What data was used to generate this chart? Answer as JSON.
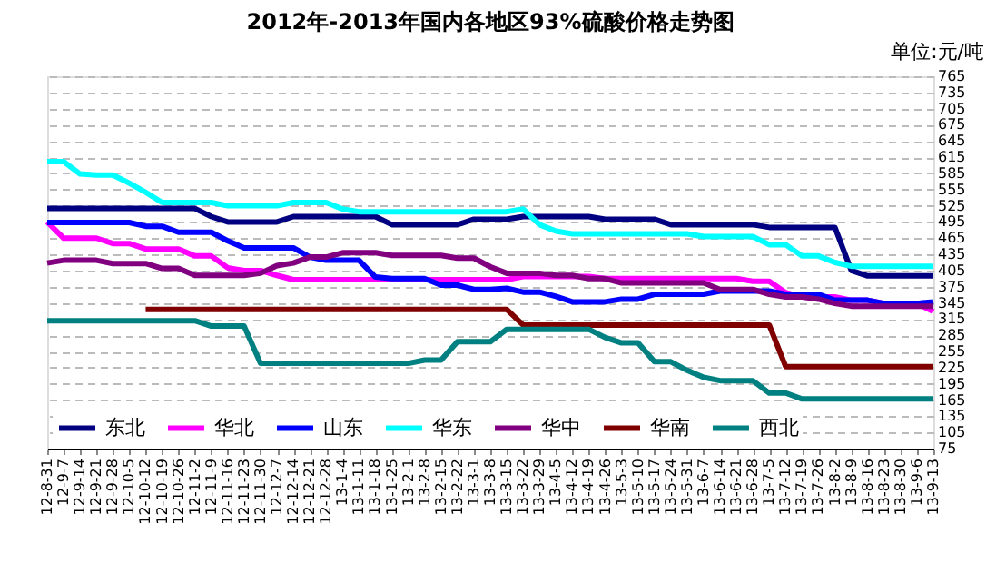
{
  "chart_data": {
    "type": "line",
    "title": "2012年-2013年国内各地区93%硫酸价格走势图",
    "annotations": [
      "单位:元/吨"
    ],
    "categories": [
      "12-8-31",
      "12-9-7",
      "12-9-14",
      "12-9-21",
      "12-9-28",
      "12-10-5",
      "12-10-12",
      "12-10-19",
      "12-10-26",
      "12-11-2",
      "12-11-9",
      "12-11-16",
      "12-11-23",
      "12-11-30",
      "12-12-7",
      "12-12-14",
      "12-12-21",
      "12-12-28",
      "13-1-4",
      "13-1-11",
      "13-1-18",
      "13-1-25",
      "13-2-1",
      "13-2-8",
      "13-2-15",
      "13-2-22",
      "13-3-1",
      "13-3-8",
      "13-3-15",
      "13-3-22",
      "13-3-29",
      "13-4-5",
      "13-4-12",
      "13-4-19",
      "13-4-26",
      "13-5-3",
      "13-5-10",
      "13-5-17",
      "13-5-24",
      "13-5-31",
      "13-6-7",
      "13-6-14",
      "13-6-21",
      "13-6-28",
      "13-7-5",
      "13-7-12",
      "13-7-19",
      "13-7-26",
      "13-8-2",
      "13-8-9",
      "13-8-16",
      "13-8-23",
      "13-8-30",
      "13-9-6",
      "13-9-13"
    ],
    "series": [
      {
        "name": "东北",
        "color": "#000080",
        "values": [
          520,
          520,
          520,
          520,
          520,
          520,
          520,
          520,
          520,
          520,
          505,
          495,
          495,
          495,
          495,
          505,
          505,
          505,
          505,
          505,
          505,
          490,
          490,
          490,
          490,
          490,
          500,
          500,
          500,
          505,
          505,
          505,
          505,
          505,
          500,
          500,
          500,
          500,
          490,
          490,
          490,
          490,
          490,
          490,
          485,
          485,
          485,
          485,
          485,
          405,
          395,
          395,
          395,
          395,
          395
        ]
      },
      {
        "name": "华北",
        "color": "#ff00ff",
        "values": [
          495,
          465,
          465,
          465,
          455,
          455,
          445,
          445,
          445,
          432,
          432,
          410,
          405,
          405,
          396,
          388,
          388,
          388,
          388,
          388,
          388,
          388,
          388,
          388,
          388,
          388,
          388,
          388,
          388,
          394,
          394,
          394,
          394,
          394,
          390,
          390,
          390,
          390,
          390,
          390,
          390,
          390,
          390,
          385,
          385,
          364,
          356,
          356,
          356,
          350,
          350,
          344,
          344,
          344,
          329
        ]
      },
      {
        "name": "山东",
        "color": "#0000ff",
        "values": [
          494,
          494,
          494,
          494,
          494,
          494,
          487,
          487,
          476,
          476,
          476,
          460,
          447,
          447,
          447,
          447,
          430,
          424,
          424,
          424,
          393,
          390,
          390,
          390,
          378,
          378,
          370,
          370,
          372,
          365,
          365,
          357,
          347,
          347,
          347,
          352,
          352,
          361,
          361,
          361,
          361,
          367,
          367,
          367,
          367,
          361,
          361,
          361,
          350,
          350,
          350,
          344,
          344,
          344,
          347
        ]
      },
      {
        "name": "华东",
        "color": "#00ffff",
        "values": [
          607,
          607,
          584,
          582,
          582,
          567,
          550,
          531,
          531,
          531,
          531,
          525,
          525,
          525,
          525,
          531,
          531,
          531,
          519,
          514,
          514,
          514,
          514,
          514,
          514,
          514,
          514,
          514,
          514,
          519,
          490,
          478,
          473,
          473,
          473,
          473,
          473,
          473,
          473,
          473,
          468,
          468,
          468,
          468,
          453,
          453,
          432,
          432,
          420,
          413,
          413,
          413,
          413,
          413,
          413
        ]
      },
      {
        "name": "华中",
        "color": "#800080",
        "values": [
          419,
          424,
          424,
          424,
          418,
          418,
          418,
          409,
          409,
          396,
          396,
          396,
          396,
          400,
          414,
          419,
          430,
          430,
          438,
          438,
          438,
          433,
          433,
          433,
          433,
          428,
          428,
          412,
          400,
          400,
          400,
          396,
          396,
          390,
          390,
          382,
          382,
          382,
          382,
          382,
          382,
          370,
          370,
          370,
          361,
          356,
          356,
          352,
          344,
          339,
          339,
          339,
          339,
          339,
          339
        ]
      },
      {
        "name": "华南",
        "color": "#800000",
        "values": [
          null,
          null,
          null,
          null,
          null,
          null,
          333,
          333,
          333,
          333,
          333,
          333,
          333,
          333,
          333,
          333,
          333,
          333,
          333,
          333,
          333,
          333,
          333,
          333,
          333,
          333,
          333,
          333,
          333,
          304,
          304,
          304,
          304,
          304,
          304,
          304,
          304,
          304,
          304,
          304,
          304,
          304,
          304,
          304,
          304,
          227,
          227,
          227,
          227,
          227,
          227,
          227,
          227,
          227,
          227
        ]
      },
      {
        "name": "西北",
        "color": "#008080",
        "values": [
          312,
          312,
          312,
          312,
          312,
          312,
          312,
          312,
          312,
          312,
          302,
          302,
          302,
          233,
          233,
          233,
          233,
          233,
          233,
          233,
          233,
          233,
          233,
          239,
          239,
          273,
          273,
          273,
          296,
          296,
          296,
          296,
          296,
          296,
          281,
          271,
          271,
          236,
          236,
          220,
          207,
          201,
          201,
          201,
          178,
          178,
          167,
          167,
          167,
          167,
          167,
          167,
          167,
          167,
          167
        ]
      }
    ],
    "ylim": [
      75,
      765
    ],
    "yticks": [
      75,
      105,
      135,
      165,
      195,
      225,
      255,
      285,
      315,
      345,
      375,
      405,
      435,
      465,
      495,
      525,
      555,
      585,
      615,
      645,
      675,
      705,
      735,
      765
    ],
    "grid": "y",
    "legend": "bottom",
    "marker": "none",
    "line_style": "solid"
  }
}
